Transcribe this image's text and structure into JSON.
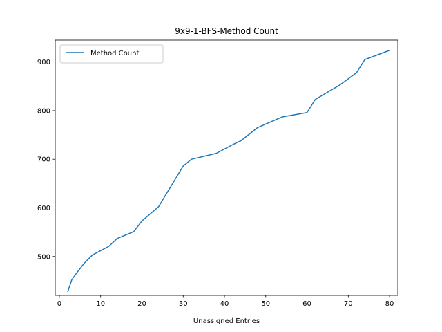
{
  "chart_data": {
    "type": "line",
    "title": "9x9-1-BFS-Method Count",
    "xlabel": "Unassigned Entries",
    "ylabel": "",
    "xlim": [
      -1,
      82
    ],
    "ylim": [
      420,
      945
    ],
    "xticks": [
      0,
      10,
      20,
      30,
      40,
      50,
      60,
      70,
      80
    ],
    "yticks": [
      500,
      600,
      700,
      800,
      900
    ],
    "grid": false,
    "legend_position": "upper-left",
    "series": [
      {
        "name": "Method Count",
        "color": "#1f77b4",
        "x": [
          2,
          3,
          4,
          6,
          8,
          12,
          14,
          18,
          20,
          24,
          30,
          32,
          38,
          42,
          44,
          48,
          54,
          60,
          62,
          68,
          72,
          74,
          80
        ],
        "y": [
          427,
          452,
          464,
          486,
          503,
          521,
          537,
          551,
          573,
          602,
          686,
          700,
          712,
          730,
          738,
          765,
          787,
          796,
          823,
          853,
          878,
          905,
          924
        ]
      }
    ]
  }
}
